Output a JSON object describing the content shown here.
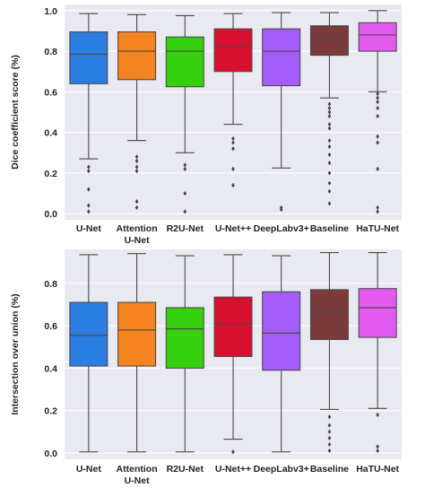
{
  "chart_data": [
    {
      "type": "box",
      "title": "",
      "xlabel": "",
      "ylabel": "Dice coefficient score (%)",
      "ylim": [
        -0.03,
        1.03
      ],
      "yticks": [
        0.0,
        0.2,
        0.4,
        0.6,
        0.8,
        1.0
      ],
      "ytick_labels": [
        "0.0",
        "0.2",
        "0.4",
        "0.6",
        "0.8",
        "1.0"
      ],
      "grid": true,
      "categories": [
        {
          "line1": "U-Net",
          "line2": ""
        },
        {
          "line1": "Attention",
          "line2": "U-Net"
        },
        {
          "line1": "R2U-Net",
          "line2": ""
        },
        {
          "line1": "U-Net++",
          "line2": ""
        },
        {
          "line1": "DeepLabv3+",
          "line2": ""
        },
        {
          "line1": "Baseline",
          "line2": ""
        },
        {
          "line1": "HaTU-Net",
          "line2": ""
        }
      ],
      "series": [
        {
          "color": "#2a7de1",
          "whisker_low": 0.27,
          "q1": 0.64,
          "median": 0.785,
          "q3": 0.895,
          "whisker_high": 0.985,
          "outliers": [
            0.23,
            0.21,
            0.12,
            0.04,
            0.01
          ]
        },
        {
          "color": "#f5841f",
          "whisker_low": 0.36,
          "q1": 0.66,
          "median": 0.8,
          "q3": 0.895,
          "whisker_high": 0.98,
          "outliers": [
            0.28,
            0.26,
            0.23,
            0.21,
            0.06,
            0.03
          ]
        },
        {
          "color": "#35d10c",
          "whisker_low": 0.3,
          "q1": 0.625,
          "median": 0.8,
          "q3": 0.87,
          "whisker_high": 0.975,
          "outliers": [
            0.24,
            0.22,
            0.1,
            0.01
          ]
        },
        {
          "color": "#d8102f",
          "whisker_low": 0.44,
          "q1": 0.7,
          "median": 0.82,
          "q3": 0.91,
          "whisker_high": 0.985,
          "outliers": [
            0.37,
            0.35,
            0.32,
            0.22,
            0.14
          ]
        },
        {
          "color": "#a35cf7",
          "whisker_low": 0.225,
          "q1": 0.63,
          "median": 0.8,
          "q3": 0.91,
          "whisker_high": 0.99,
          "outliers": [
            0.03,
            0.02
          ]
        },
        {
          "color": "#7c3b3b",
          "whisker_low": 0.57,
          "q1": 0.78,
          "median": 0.87,
          "q3": 0.925,
          "whisker_high": 0.99,
          "outliers": [
            0.54,
            0.52,
            0.5,
            0.48,
            0.44,
            0.42,
            0.36,
            0.33,
            0.29,
            0.25,
            0.2,
            0.15,
            0.11,
            0.05
          ]
        },
        {
          "color": "#e45bf0",
          "whisker_low": 0.6,
          "q1": 0.8,
          "median": 0.88,
          "q3": 0.94,
          "whisker_high": 1.0,
          "outliers": [
            0.59,
            0.57,
            0.55,
            0.52,
            0.48,
            0.38,
            0.35,
            0.22,
            0.03,
            0.01
          ]
        }
      ]
    },
    {
      "type": "box",
      "title": "",
      "xlabel": "",
      "ylabel": "Intersection over union (%)",
      "ylim": [
        -0.03,
        0.96
      ],
      "yticks": [
        0.0,
        0.2,
        0.4,
        0.6,
        0.8
      ],
      "ytick_labels": [
        "0.0",
        "0.2",
        "0.4",
        "0.6",
        "0.8"
      ],
      "grid": true,
      "categories": [
        {
          "line1": "U-Net",
          "line2": ""
        },
        {
          "line1": "Attention",
          "line2": "U-Net"
        },
        {
          "line1": "R2U-Net",
          "line2": ""
        },
        {
          "line1": "U-Net++",
          "line2": ""
        },
        {
          "line1": "DeepLabv3+",
          "line2": ""
        },
        {
          "line1": "Baseline",
          "line2": ""
        },
        {
          "line1": "HaTU-Net",
          "line2": ""
        }
      ],
      "series": [
        {
          "color": "#2a7de1",
          "whisker_low": 0.005,
          "q1": 0.41,
          "median": 0.555,
          "q3": 0.71,
          "whisker_high": 0.935,
          "outliers": []
        },
        {
          "color": "#f5841f",
          "whisker_low": 0.005,
          "q1": 0.41,
          "median": 0.58,
          "q3": 0.71,
          "whisker_high": 0.94,
          "outliers": []
        },
        {
          "color": "#35d10c",
          "whisker_low": 0.005,
          "q1": 0.4,
          "median": 0.585,
          "q3": 0.685,
          "whisker_high": 0.93,
          "outliers": []
        },
        {
          "color": "#d8102f",
          "whisker_low": 0.065,
          "q1": 0.455,
          "median": 0.61,
          "q3": 0.735,
          "whisker_high": 0.935,
          "outliers": [
            0.005
          ]
        },
        {
          "color": "#a35cf7",
          "whisker_low": 0.005,
          "q1": 0.39,
          "median": 0.565,
          "q3": 0.76,
          "whisker_high": 0.93,
          "outliers": []
        },
        {
          "color": "#7c3b3b",
          "whisker_low": 0.205,
          "q1": 0.535,
          "median": 0.655,
          "q3": 0.77,
          "whisker_high": 0.945,
          "outliers": [
            0.17,
            0.13,
            0.1,
            0.07,
            0.04,
            0.01
          ]
        },
        {
          "color": "#e45bf0",
          "whisker_low": 0.21,
          "q1": 0.545,
          "median": 0.685,
          "q3": 0.775,
          "whisker_high": 0.945,
          "outliers": [
            0.18,
            0.03,
            0.01
          ]
        }
      ]
    }
  ]
}
